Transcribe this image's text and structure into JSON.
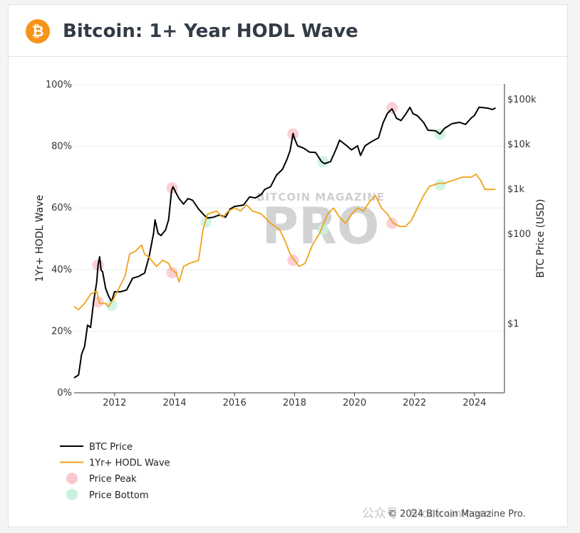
{
  "header": {
    "logo_glyph": "₿",
    "title": "Bitcoin: 1+ Year HODL Wave"
  },
  "footer": {
    "copyright": "© 2024 Bitcoin Magazine Pro.",
    "wechat_overlay": "公众号 · Block unicorn"
  },
  "watermark": {
    "top": "BITCOIN MAGAZINE",
    "big": "PRO"
  },
  "colors": {
    "price": "#000000",
    "hodl": "#f0a21b",
    "peak": "#f8c8cf",
    "bottom": "#c9f2de",
    "grid": "#eeeeee",
    "logo": "#f7931a"
  },
  "chart_data": {
    "type": "line",
    "xlabel": "",
    "ylabel": "1Yr+ HODL Wave",
    "y2label": "BTC Price (USD)",
    "xlim": [
      2010.65,
      2025.0
    ],
    "ylim": [
      0,
      100
    ],
    "y2_scale": "log",
    "x_ticks": [
      2012,
      2014,
      2016,
      2018,
      2020,
      2022,
      2024
    ],
    "x_tick_labels": [
      "2012",
      "2014",
      "2016",
      "2018",
      "2020",
      "2022",
      "2024"
    ],
    "y_ticks": [
      0,
      20,
      40,
      60,
      80,
      100
    ],
    "y_tick_labels": [
      "0%",
      "20%",
      "40%",
      "60%",
      "80%",
      "100%"
    ],
    "y2_ticks": [
      1,
      100,
      1000,
      10000,
      100000
    ],
    "y2_tick_labels": [
      "$1",
      "$100",
      "$1k",
      "$10k",
      "$100k"
    ],
    "grid": true,
    "legend_position": "bottom-left",
    "series": [
      {
        "name": "BTC Price",
        "axis": "right",
        "points": [
          [
            2010.65,
            0.06
          ],
          [
            2010.8,
            0.07
          ],
          [
            2010.9,
            0.2
          ],
          [
            2011.0,
            0.3
          ],
          [
            2011.1,
            0.9
          ],
          [
            2011.2,
            0.8
          ],
          [
            2011.3,
            3
          ],
          [
            2011.4,
            8
          ],
          [
            2011.45,
            20
          ],
          [
            2011.5,
            30
          ],
          [
            2011.55,
            15
          ],
          [
            2011.6,
            14
          ],
          [
            2011.7,
            6
          ],
          [
            2011.8,
            4
          ],
          [
            2011.9,
            3
          ],
          [
            2012.0,
            5
          ],
          [
            2012.2,
            5
          ],
          [
            2012.4,
            5.5
          ],
          [
            2012.6,
            10
          ],
          [
            2012.8,
            11
          ],
          [
            2013.0,
            13
          ],
          [
            2013.15,
            30
          ],
          [
            2013.3,
            100
          ],
          [
            2013.35,
            200
          ],
          [
            2013.45,
            100
          ],
          [
            2013.55,
            90
          ],
          [
            2013.7,
            120
          ],
          [
            2013.8,
            200
          ],
          [
            2013.9,
            900
          ],
          [
            2013.95,
            1100
          ],
          [
            2014.05,
            800
          ],
          [
            2014.15,
            600
          ],
          [
            2014.3,
            450
          ],
          [
            2014.45,
            600
          ],
          [
            2014.6,
            550
          ],
          [
            2014.8,
            350
          ],
          [
            2015.0,
            250
          ],
          [
            2015.1,
            220
          ],
          [
            2015.3,
            230
          ],
          [
            2015.5,
            260
          ],
          [
            2015.7,
            230
          ],
          [
            2015.85,
            350
          ],
          [
            2016.0,
            400
          ],
          [
            2016.3,
            430
          ],
          [
            2016.5,
            650
          ],
          [
            2016.7,
            620
          ],
          [
            2016.9,
            750
          ],
          [
            2017.0,
            950
          ],
          [
            2017.2,
            1100
          ],
          [
            2017.4,
            2000
          ],
          [
            2017.6,
            2700
          ],
          [
            2017.75,
            4500
          ],
          [
            2017.85,
            7000
          ],
          [
            2017.95,
            17000
          ],
          [
            2018.0,
            13000
          ],
          [
            2018.1,
            9000
          ],
          [
            2018.3,
            8000
          ],
          [
            2018.5,
            6500
          ],
          [
            2018.7,
            6400
          ],
          [
            2018.9,
            4000
          ],
          [
            2019.0,
            3600
          ],
          [
            2019.2,
            4000
          ],
          [
            2019.4,
            8000
          ],
          [
            2019.5,
            12000
          ],
          [
            2019.7,
            9500
          ],
          [
            2019.9,
            7300
          ],
          [
            2020.1,
            9000
          ],
          [
            2020.2,
            5500
          ],
          [
            2020.35,
            9000
          ],
          [
            2020.6,
            11500
          ],
          [
            2020.8,
            13500
          ],
          [
            2020.95,
            29000
          ],
          [
            2021.1,
            48000
          ],
          [
            2021.25,
            60000
          ],
          [
            2021.4,
            37000
          ],
          [
            2021.55,
            33000
          ],
          [
            2021.7,
            45000
          ],
          [
            2021.85,
            65000
          ],
          [
            2021.95,
            47000
          ],
          [
            2022.1,
            42000
          ],
          [
            2022.3,
            30000
          ],
          [
            2022.45,
            20000
          ],
          [
            2022.7,
            19500
          ],
          [
            2022.85,
            16500
          ],
          [
            2023.0,
            22000
          ],
          [
            2023.25,
            28000
          ],
          [
            2023.5,
            30000
          ],
          [
            2023.7,
            27000
          ],
          [
            2023.9,
            38000
          ],
          [
            2024.0,
            43000
          ],
          [
            2024.15,
            65000
          ],
          [
            2024.3,
            64000
          ],
          [
            2024.45,
            62000
          ],
          [
            2024.6,
            58000
          ],
          [
            2024.7,
            63000
          ]
        ]
      },
      {
        "name": "1Yr+ HODL Wave",
        "axis": "left",
        "points": [
          [
            2010.65,
            28
          ],
          [
            2010.8,
            27
          ],
          [
            2011.0,
            29
          ],
          [
            2011.2,
            32
          ],
          [
            2011.4,
            33
          ],
          [
            2011.5,
            29
          ],
          [
            2011.7,
            29
          ],
          [
            2011.8,
            28
          ],
          [
            2012.0,
            31
          ],
          [
            2012.2,
            35
          ],
          [
            2012.35,
            38
          ],
          [
            2012.5,
            45
          ],
          [
            2012.7,
            46
          ],
          [
            2012.9,
            48
          ],
          [
            2013.0,
            45
          ],
          [
            2013.15,
            44
          ],
          [
            2013.4,
            41
          ],
          [
            2013.6,
            43
          ],
          [
            2013.8,
            42
          ],
          [
            2013.9,
            40
          ],
          [
            2014.05,
            39
          ],
          [
            2014.15,
            36
          ],
          [
            2014.3,
            41
          ],
          [
            2014.5,
            42
          ],
          [
            2014.8,
            43
          ],
          [
            2014.95,
            53
          ],
          [
            2015.1,
            58
          ],
          [
            2015.4,
            59
          ],
          [
            2015.6,
            57
          ],
          [
            2015.8,
            59
          ],
          [
            2016.0,
            60
          ],
          [
            2016.2,
            59
          ],
          [
            2016.4,
            61
          ],
          [
            2016.6,
            59
          ],
          [
            2016.9,
            58
          ],
          [
            2017.2,
            55
          ],
          [
            2017.5,
            53
          ],
          [
            2017.7,
            49
          ],
          [
            2017.85,
            45
          ],
          [
            2018.0,
            43
          ],
          [
            2018.15,
            41
          ],
          [
            2018.35,
            42
          ],
          [
            2018.6,
            48
          ],
          [
            2018.85,
            52
          ],
          [
            2019.1,
            58
          ],
          [
            2019.3,
            60
          ],
          [
            2019.5,
            57
          ],
          [
            2019.7,
            55
          ],
          [
            2019.9,
            58
          ],
          [
            2020.1,
            60
          ],
          [
            2020.3,
            59
          ],
          [
            2020.5,
            62
          ],
          [
            2020.7,
            64
          ],
          [
            2020.9,
            60
          ],
          [
            2021.1,
            58
          ],
          [
            2021.3,
            55
          ],
          [
            2021.5,
            54
          ],
          [
            2021.7,
            54
          ],
          [
            2021.9,
            56
          ],
          [
            2022.1,
            60
          ],
          [
            2022.3,
            64
          ],
          [
            2022.5,
            67
          ],
          [
            2022.8,
            68
          ],
          [
            2023.0,
            68
          ],
          [
            2023.3,
            69
          ],
          [
            2023.6,
            70
          ],
          [
            2023.9,
            70
          ],
          [
            2024.05,
            71
          ],
          [
            2024.2,
            69
          ],
          [
            2024.35,
            66
          ],
          [
            2024.5,
            66
          ],
          [
            2024.7,
            66
          ]
        ]
      }
    ],
    "markers": [
      {
        "name": "Price Peak",
        "points": [
          [
            2011.45,
            41.5
          ],
          [
            2011.45,
            29.5
          ],
          [
            2013.92,
            66.5
          ],
          [
            2013.92,
            39.0
          ],
          [
            2017.95,
            84.0
          ],
          [
            2017.95,
            43.0
          ],
          [
            2021.25,
            92.5
          ],
          [
            2021.25,
            55.0
          ]
        ]
      },
      {
        "name": "Price Bottom",
        "points": [
          [
            2011.9,
            28.5
          ],
          [
            2015.05,
            55.5
          ],
          [
            2018.95,
            75.0
          ],
          [
            2018.95,
            53.0
          ],
          [
            2022.85,
            84.0
          ],
          [
            2022.85,
            67.5
          ]
        ]
      }
    ]
  }
}
